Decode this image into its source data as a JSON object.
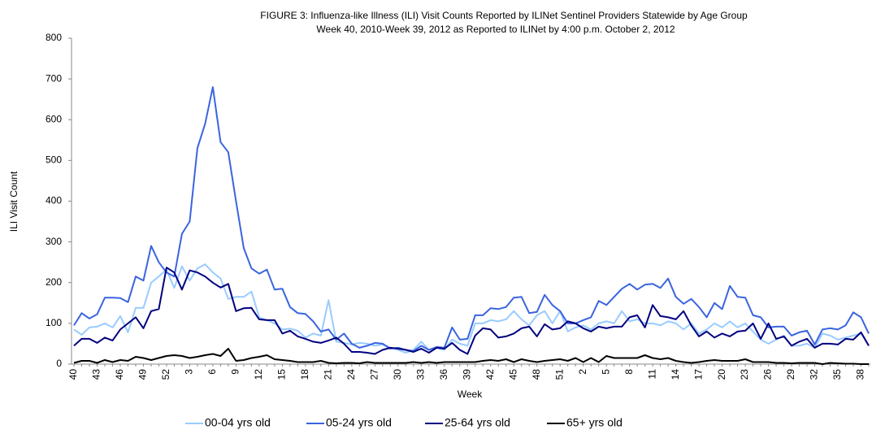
{
  "chart_data": {
    "type": "line",
    "title": "FIGURE 3: Influenza-like Illness (ILI) Visit Counts Reported by ILINet Sentinel Providers Statewide by Age Group",
    "subtitle": "Week 40, 2010-Week 39, 2012 as Reported to ILINet by 4:00 p.m. October 2, 2012",
    "x_label": "Week",
    "y_label": "ILI Visit Count",
    "categories": [
      "40",
      null,
      null,
      "43",
      null,
      null,
      "46",
      null,
      null,
      "49",
      null,
      null,
      "52",
      null,
      null,
      "3",
      null,
      null,
      "6",
      null,
      null,
      "9",
      null,
      null,
      "12",
      null,
      null,
      "15",
      null,
      null,
      "18",
      null,
      null,
      "21",
      null,
      null,
      "24",
      null,
      null,
      "27",
      null,
      null,
      "30",
      null,
      null,
      "33",
      null,
      null,
      "36",
      null,
      null,
      "39",
      null,
      null,
      "42",
      null,
      null,
      "45",
      null,
      null,
      "48",
      null,
      null,
      "51",
      null,
      null,
      "2",
      null,
      null,
      "5",
      null,
      null,
      "8",
      null,
      null,
      "11",
      null,
      null,
      "14",
      null,
      null,
      "17",
      null,
      null,
      "20",
      null,
      null,
      "23",
      null,
      null,
      "26",
      null,
      null,
      "29",
      null,
      null,
      "32",
      null,
      null,
      "35",
      null,
      null,
      "38",
      null
    ],
    "series": [
      {
        "name": "00-04 yrs old",
        "color": "#99ccff",
        "values": [
          85,
          72,
          90,
          92,
          100,
          90,
          118,
          78,
          138,
          138,
          200,
          215,
          232,
          187,
          240,
          205,
          235,
          245,
          225,
          210,
          160,
          165,
          165,
          178,
          115,
          108,
          100,
          85,
          87,
          82,
          65,
          75,
          70,
          157,
          55,
          52,
          48,
          52,
          50,
          45,
          48,
          40,
          35,
          28,
          35,
          55,
          35,
          40,
          35,
          60,
          50,
          45,
          100,
          100,
          108,
          105,
          110,
          130,
          110,
          95,
          120,
          130,
          100,
          130,
          80,
          90,
          95,
          85,
          100,
          105,
          100,
          130,
          105,
          110,
          100,
          100,
          95,
          105,
          100,
          85,
          100,
          75,
          85,
          100,
          90,
          105,
          90,
          100,
          80,
          60,
          50,
          60,
          70,
          45,
          45,
          50,
          40,
          75,
          70,
          60,
          65,
          70,
          75,
          45
        ]
      },
      {
        "name": "05-24 yrs old",
        "color": "#3a64e0",
        "values": [
          95,
          125,
          112,
          122,
          163,
          163,
          162,
          152,
          215,
          205,
          290,
          250,
          225,
          215,
          320,
          350,
          530,
          590,
          680,
          545,
          520,
          400,
          285,
          235,
          222,
          232,
          183,
          185,
          140,
          125,
          123,
          105,
          80,
          85,
          60,
          75,
          50,
          40,
          45,
          52,
          50,
          38,
          40,
          35,
          32,
          45,
          35,
          42,
          40,
          90,
          60,
          62,
          120,
          120,
          137,
          135,
          140,
          163,
          165,
          125,
          128,
          170,
          145,
          130,
          100,
          100,
          108,
          115,
          155,
          145,
          165,
          185,
          197,
          183,
          195,
          197,
          187,
          210,
          165,
          148,
          160,
          140,
          115,
          150,
          135,
          192,
          165,
          163,
          120,
          115,
          90,
          92,
          92,
          70,
          78,
          82,
          48,
          85,
          88,
          85,
          95,
          127,
          115,
          75
        ]
      },
      {
        "name": "25-64 yrs old",
        "color": "#000080",
        "values": [
          45,
          62,
          62,
          52,
          65,
          58,
          85,
          100,
          115,
          88,
          130,
          135,
          237,
          225,
          183,
          230,
          225,
          215,
          200,
          188,
          197,
          130,
          137,
          138,
          110,
          108,
          108,
          75,
          82,
          68,
          62,
          55,
          52,
          58,
          65,
          50,
          30,
          30,
          28,
          25,
          35,
          40,
          38,
          35,
          30,
          38,
          28,
          40,
          38,
          52,
          35,
          25,
          70,
          88,
          85,
          65,
          68,
          75,
          88,
          92,
          68,
          98,
          85,
          88,
          105,
          100,
          88,
          80,
          92,
          88,
          92,
          92,
          115,
          120,
          90,
          145,
          118,
          115,
          110,
          130,
          95,
          68,
          80,
          65,
          75,
          68,
          80,
          82,
          100,
          62,
          100,
          62,
          68,
          45,
          55,
          62,
          40,
          50,
          50,
          48,
          62,
          60,
          78,
          45
        ]
      },
      {
        "name": "65+ yrs old",
        "color": "#000000",
        "values": [
          3,
          8,
          8,
          3,
          10,
          5,
          10,
          8,
          18,
          15,
          10,
          15,
          20,
          22,
          20,
          15,
          18,
          22,
          25,
          20,
          38,
          8,
          10,
          15,
          18,
          22,
          12,
          10,
          8,
          5,
          5,
          5,
          8,
          3,
          2,
          3,
          3,
          2,
          5,
          3,
          3,
          3,
          3,
          3,
          5,
          3,
          5,
          3,
          5,
          5,
          5,
          5,
          5,
          8,
          10,
          8,
          12,
          5,
          12,
          8,
          5,
          8,
          10,
          12,
          8,
          15,
          5,
          15,
          5,
          20,
          15,
          15,
          15,
          15,
          22,
          15,
          12,
          15,
          8,
          5,
          3,
          5,
          8,
          10,
          8,
          8,
          8,
          12,
          5,
          5,
          5,
          3,
          3,
          2,
          3,
          3,
          3,
          0,
          3,
          2,
          1,
          1,
          0,
          0
        ]
      }
    ],
    "ylim": [
      0,
      800
    ],
    "yticks": [
      0,
      100,
      200,
      300,
      400,
      500,
      600,
      700,
      800
    ],
    "grid": false
  }
}
